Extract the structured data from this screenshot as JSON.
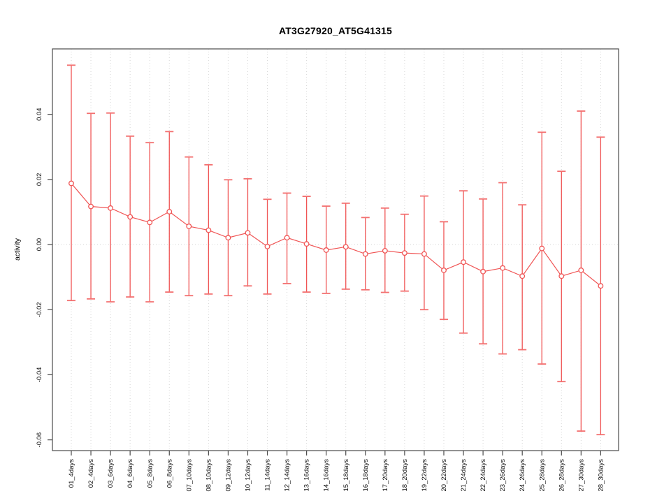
{
  "figure": {
    "background": "#ffffff"
  },
  "styles": {
    "series_color": "#f05555",
    "cap_color": "#f37070",
    "grid_color": "#d6d6d6",
    "axis_color": "#4a4a4a",
    "text_color": "#111111"
  },
  "chart_data": {
    "type": "scatter",
    "subtype": "points-with-error-bars-and-connecting-line",
    "title": "AT3G27920_AT5G41315",
    "xlabel": "",
    "ylabel": "activity",
    "legend": "none",
    "grid": "vertical dotted gridline at each category plus dotted zero line",
    "marker": "open-circle",
    "ylim": [
      -0.0633,
      0.0601
    ],
    "y_ticks": [
      0.04,
      0.02,
      0.0,
      -0.02,
      -0.04,
      -0.06
    ],
    "categories": [
      "01_4days",
      "02_4days",
      "03_6days",
      "04_6days",
      "05_8days",
      "06_8days",
      "07_10days",
      "08_10days",
      "09_12days",
      "10_12days",
      "11_14days",
      "12_14days",
      "13_16days",
      "14_16days",
      "15_18days",
      "16_18days",
      "17_20days",
      "18_20days",
      "19_22days",
      "20_22days",
      "21_24days",
      "22_24days",
      "23_26days",
      "24_26days",
      "25_28days",
      "26_28days",
      "27_30days",
      "28_30days"
    ],
    "series": [
      {
        "name": "activity",
        "values": [
          0.0188,
          0.0117,
          0.0112,
          0.0085,
          0.0068,
          0.0101,
          0.0056,
          0.0044,
          0.0021,
          0.0036,
          -0.0006,
          0.0021,
          0.0002,
          -0.0017,
          -0.0007,
          -0.0029,
          -0.0019,
          -0.0026,
          -0.0029,
          -0.0079,
          -0.0054,
          -0.0083,
          -0.0072,
          -0.0097,
          -0.0012,
          -0.0097,
          -0.0079,
          -0.0127
        ],
        "error_high": [
          0.0551,
          0.0403,
          0.0404,
          0.0333,
          0.0313,
          0.0347,
          0.0269,
          0.0245,
          0.0199,
          0.0202,
          0.0139,
          0.0158,
          0.0148,
          0.0118,
          0.0127,
          0.0083,
          0.0112,
          0.0093,
          0.0149,
          0.007,
          0.0165,
          0.014,
          0.019,
          0.0122,
          0.0345,
          0.0225,
          0.041,
          0.033
        ],
        "error_low": [
          -0.0172,
          -0.0167,
          -0.0176,
          -0.0161,
          -0.0176,
          -0.0146,
          -0.0157,
          -0.0152,
          -0.0157,
          -0.0127,
          -0.0152,
          -0.012,
          -0.0146,
          -0.015,
          -0.0137,
          -0.0139,
          -0.0147,
          -0.0143,
          -0.02,
          -0.023,
          -0.0272,
          -0.0305,
          -0.0336,
          -0.0323,
          -0.0367,
          -0.0421,
          -0.0573,
          -0.0584
        ]
      }
    ]
  }
}
